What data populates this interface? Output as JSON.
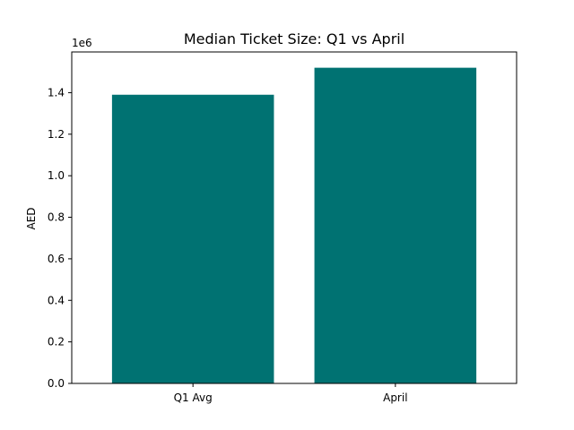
{
  "chart_data": {
    "type": "bar",
    "title": "Median Ticket Size: Q1 vs April",
    "xlabel": "",
    "ylabel": "AED",
    "offset_text": "1e6",
    "categories": [
      "Q1 Avg",
      "April"
    ],
    "values": [
      1390000,
      1520000
    ],
    "bar_color": "#007272",
    "ylim": [
      0,
      1596000
    ],
    "yticks": [
      0,
      200000,
      400000,
      600000,
      800000,
      1000000,
      1200000,
      1400000
    ],
    "ytick_labels": [
      "0.0",
      "0.2",
      "0.4",
      "0.6",
      "0.8",
      "1.0",
      "1.2",
      "1.4"
    ],
    "grid": false,
    "legend": "none"
  }
}
